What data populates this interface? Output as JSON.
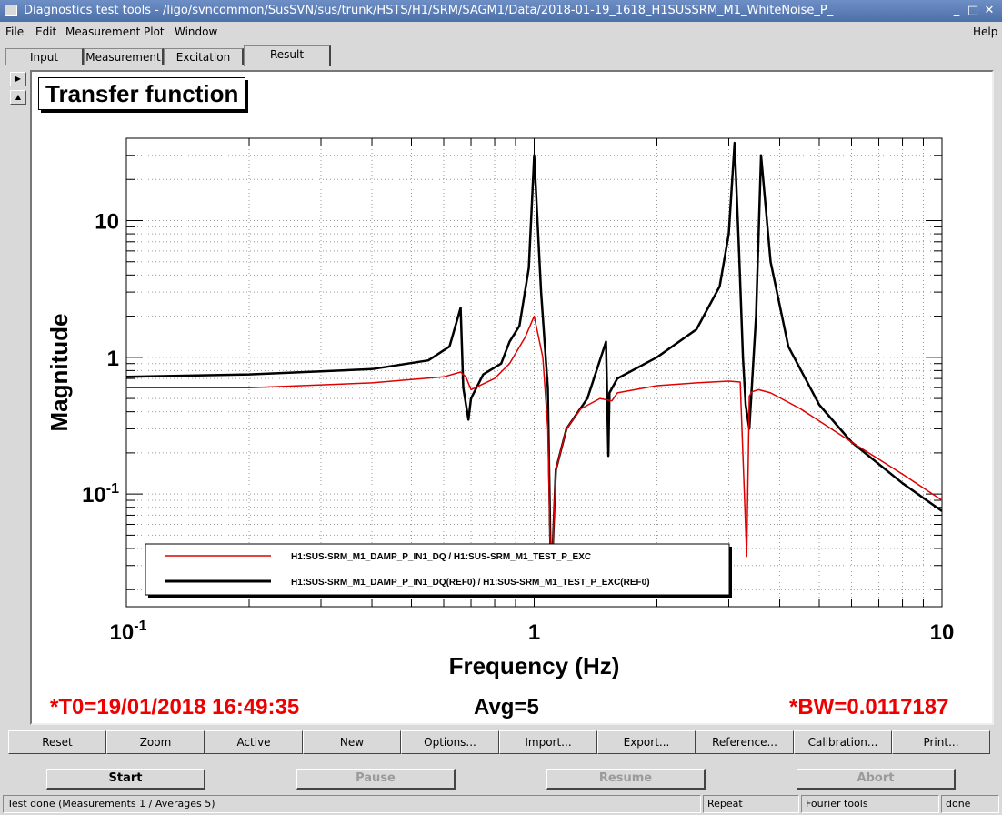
{
  "window": {
    "title": "Diagnostics test tools - /ligo/svncommon/SusSVN/sus/trunk/HSTS/H1/SRM/SAGM1/Data/2018-01-19_1618_H1SUSSRM_M1_WhiteNoise_P_"
  },
  "menu": [
    "File",
    "Edit",
    "Measurement",
    "Plot",
    "Window"
  ],
  "help_label": "Help",
  "tabs": [
    "Input",
    "Measurement",
    "Excitation",
    "Result"
  ],
  "active_tab": "Result",
  "plot": {
    "footer_t0": "*T0=19/01/2018 16:49:35",
    "footer_avg": "Avg=5",
    "footer_bw": "*BW=0.0117187"
  },
  "toolbar": [
    "Reset",
    "Zoom",
    "Active",
    "New",
    "Options...",
    "Import...",
    "Export...",
    "Reference...",
    "Calibration...",
    "Print..."
  ],
  "controls": {
    "start": "Start",
    "pause": "Pause",
    "resume": "Resume",
    "abort": "Abort"
  },
  "status": {
    "message": "Test done (Measurements 1 / Averages 5)",
    "mode": "Repeat",
    "tool": "Fourier tools",
    "state": "done"
  },
  "chart_data": {
    "type": "line",
    "title": "Transfer function",
    "xlabel": "Frequency (Hz)",
    "ylabel": "Magnitude",
    "xscale": "log",
    "yscale": "log",
    "xlim": [
      0.1,
      10
    ],
    "ylim": [
      0.015,
      40
    ],
    "x_tick_labels": [
      "10^-1",
      "1",
      "10"
    ],
    "y_tick_labels": [
      "10^-1",
      "1",
      "10"
    ],
    "grid": true,
    "legend_position": "bottom-left",
    "series": [
      {
        "name": "H1:SUS-SRM_M1_DAMP_P_IN1_DQ / H1:SUS-SRM_M1_TEST_P_EXC",
        "color": "#e00000",
        "x": [
          0.1,
          0.2,
          0.4,
          0.6,
          0.66,
          0.68,
          0.7,
          0.8,
          0.87,
          0.95,
          1.0,
          1.05,
          1.08,
          1.1,
          1.13,
          1.2,
          1.3,
          1.45,
          1.55,
          1.6,
          2.0,
          2.5,
          3.0,
          3.2,
          3.32,
          3.37,
          3.42,
          3.55,
          3.8,
          4.5,
          6.0,
          8.0,
          10.0
        ],
        "y": [
          0.6,
          0.6,
          0.65,
          0.72,
          0.78,
          0.72,
          0.58,
          0.7,
          0.9,
          1.4,
          2.0,
          1.0,
          0.3,
          0.02,
          0.15,
          0.3,
          0.42,
          0.5,
          0.48,
          0.55,
          0.62,
          0.65,
          0.67,
          0.66,
          0.035,
          0.52,
          0.56,
          0.58,
          0.55,
          0.42,
          0.24,
          0.14,
          0.09
        ]
      },
      {
        "name": "H1:SUS-SRM_M1_DAMP_P_IN1_DQ(REF0) / H1:SUS-SRM_M1_TEST_P_EXC(REF0)",
        "color": "#000000",
        "x": [
          0.1,
          0.2,
          0.4,
          0.55,
          0.62,
          0.66,
          0.67,
          0.69,
          0.7,
          0.75,
          0.83,
          0.87,
          0.92,
          0.97,
          1.0,
          1.04,
          1.08,
          1.1,
          1.13,
          1.2,
          1.35,
          1.5,
          1.52,
          1.53,
          1.6,
          2.0,
          2.5,
          2.85,
          3.0,
          3.1,
          3.18,
          3.25,
          3.3,
          3.37,
          3.5,
          3.6,
          3.8,
          4.2,
          5.0,
          6.0,
          8.0,
          10.0
        ],
        "y": [
          0.72,
          0.75,
          0.82,
          0.95,
          1.2,
          2.3,
          0.6,
          0.35,
          0.5,
          0.75,
          0.9,
          1.3,
          1.7,
          4.5,
          30.0,
          3.0,
          0.6,
          0.02,
          0.15,
          0.3,
          0.5,
          1.3,
          0.19,
          0.55,
          0.7,
          1.0,
          1.6,
          3.3,
          8.0,
          37.0,
          6.0,
          1.0,
          0.45,
          0.3,
          2.0,
          30.0,
          5.0,
          1.2,
          0.45,
          0.24,
          0.12,
          0.075
        ]
      }
    ]
  }
}
